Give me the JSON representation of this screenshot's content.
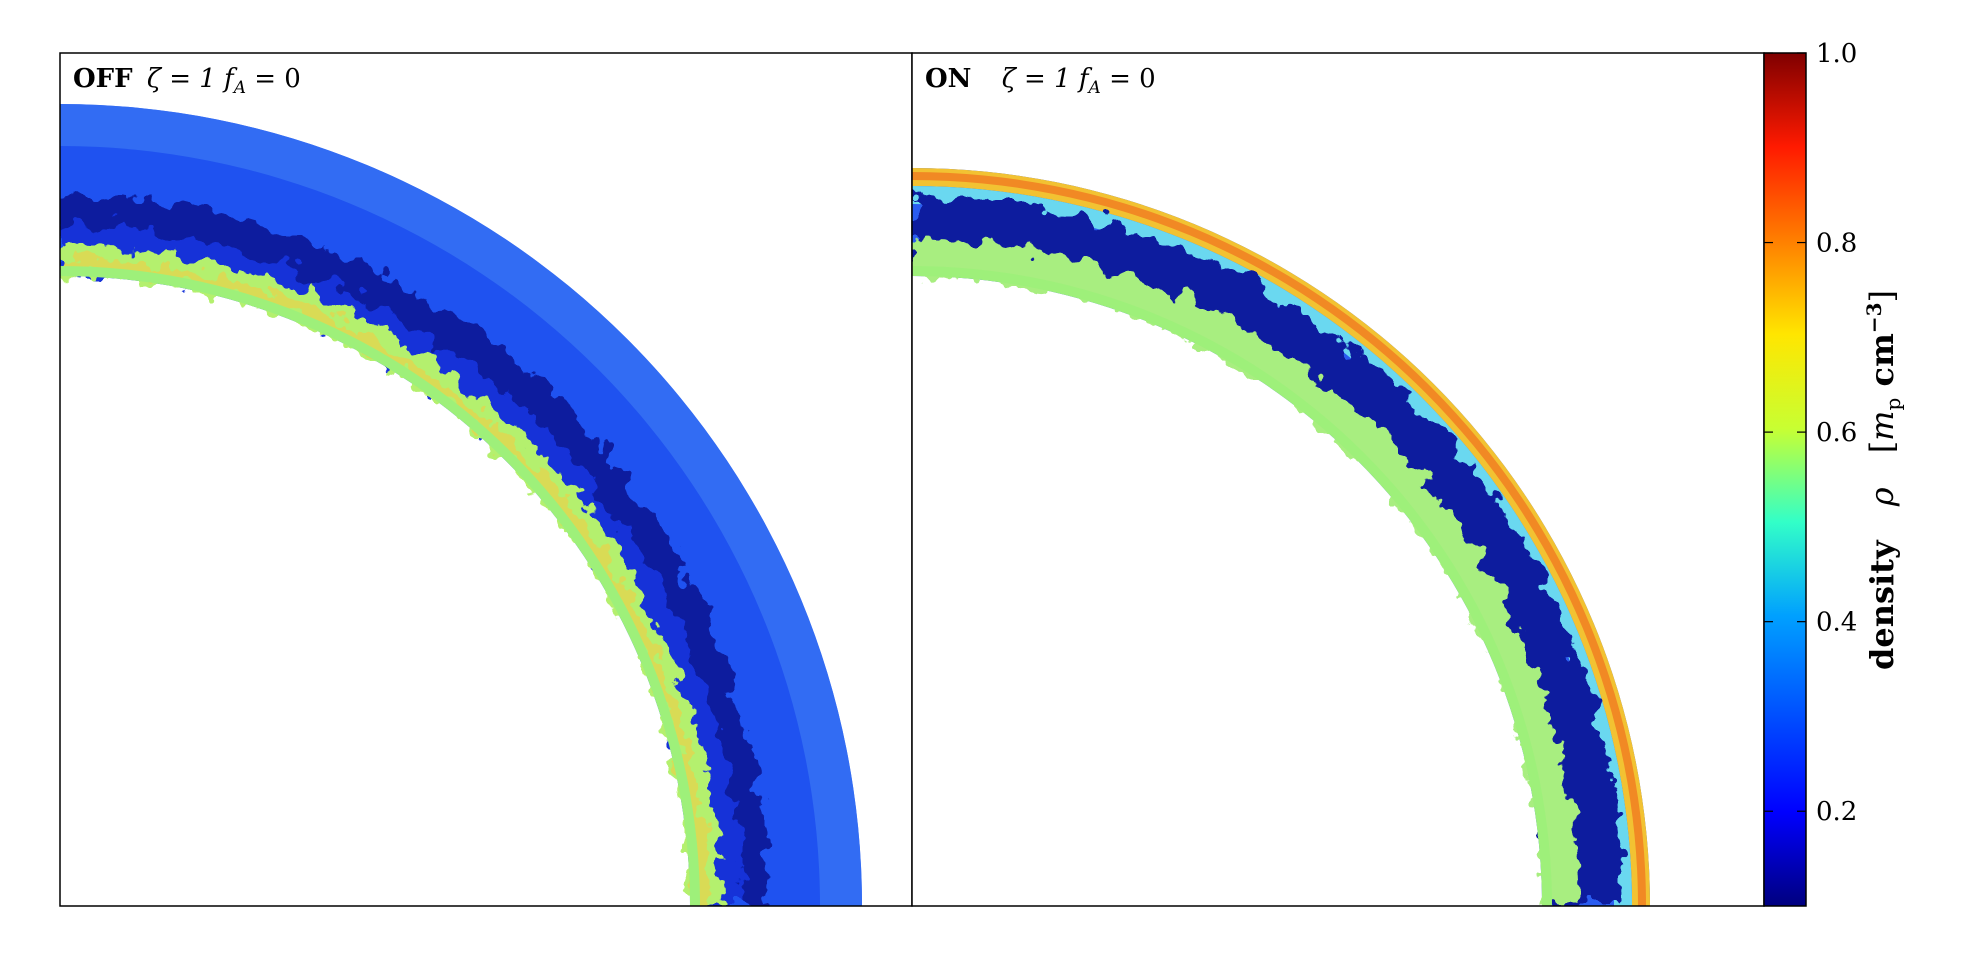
{
  "panels": [
    {
      "id": "off",
      "label_bold": "OFF",
      "label_math": "ζ = 1  f",
      "label_sub": "A",
      "label_tail": " = 0"
    },
    {
      "id": "on",
      "label_bold": "ON",
      "label_math": "ζ = 1  f",
      "label_sub": "A",
      "label_tail": " = 0"
    }
  ],
  "colorbar": {
    "colormap": "jet",
    "range": [
      0.1,
      1.0
    ],
    "ticks": [
      {
        "value": 0.2,
        "label": "0.2"
      },
      {
        "value": 0.4,
        "label": "0.4"
      },
      {
        "value": 0.6,
        "label": "0.6"
      },
      {
        "value": 0.8,
        "label": "0.8"
      },
      {
        "value": 1.0,
        "label": "1.0"
      }
    ],
    "title_word": "density",
    "title_symbol": "ρ",
    "title_unit_open": "[",
    "title_unit_m": "m",
    "title_unit_p": "p",
    "title_unit_cm": " cm",
    "title_unit_exp": "−3",
    "title_unit_close": "]"
  },
  "colors": {
    "frame": "#000000",
    "background": "#ffffff",
    "low_density": "#0b2ee6",
    "mid_density": "#b8f06a",
    "high_density": "#f2b020"
  }
}
